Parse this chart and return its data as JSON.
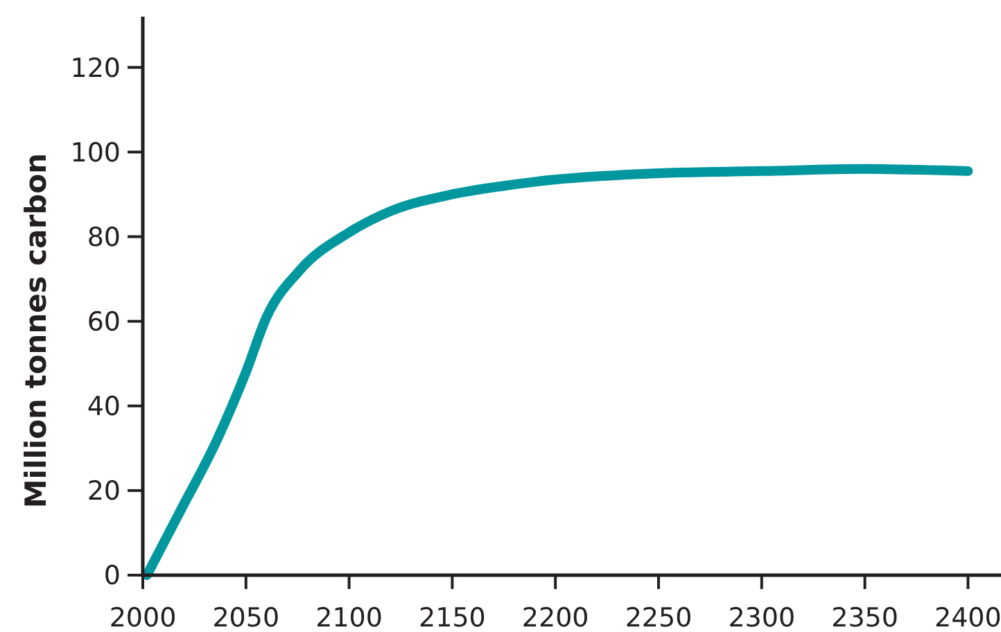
{
  "chart_data": {
    "type": "line",
    "ylabel": "Million tonnes carbon",
    "x": [
      2002,
      2018,
      2036,
      2050,
      2060,
      2076,
      2100,
      2120,
      2150,
      2175,
      2200,
      2250,
      2300,
      2350,
      2400
    ],
    "series": [
      {
        "color": "#00979f",
        "values": [
          0,
          15,
          32,
          48,
          61,
          72,
          81,
          86,
          90,
          92,
          93.5,
          95,
          95.5,
          96,
          95.5
        ]
      }
    ],
    "xlim": [
      2000,
      2416
    ],
    "xticks": [
      2000,
      2050,
      2100,
      2150,
      2200,
      2250,
      2300,
      2350,
      2400
    ],
    "ylim": [
      0,
      132
    ],
    "yticks": [
      0,
      20,
      40,
      60,
      80,
      100,
      120
    ],
    "grid": false,
    "marker": "none",
    "line_style": "solid"
  }
}
